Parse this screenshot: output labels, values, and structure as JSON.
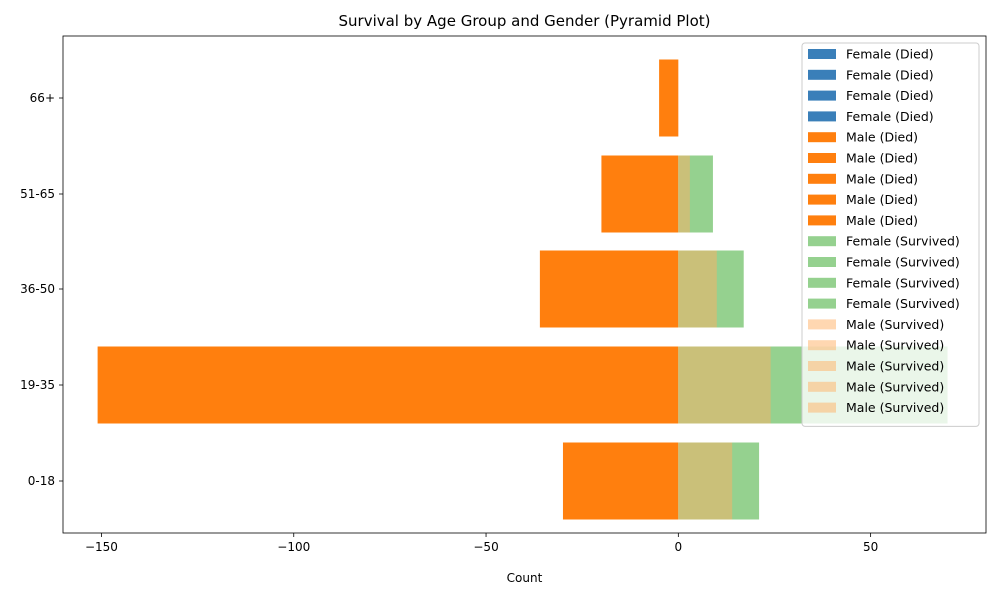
{
  "chart_data": {
    "type": "bar",
    "orientation": "horizontal",
    "title": "Survival by Age Group and Gender (Pyramid Plot)",
    "xlabel": "Count",
    "ylabel": "",
    "xlim": [
      -160,
      80
    ],
    "xticks": [
      -150,
      -100,
      -50,
      0,
      50
    ],
    "xtick_labels": [
      "−150",
      "−100",
      "−50",
      "0",
      "50"
    ],
    "categories": [
      "0-18",
      "19-35",
      "36-50",
      "51-65",
      "66+"
    ],
    "grid": false,
    "legend_position": "top-right",
    "series": [
      {
        "name": "Female (Died)",
        "color": "#3a7fb9",
        "opacity": 1,
        "values": [
          0,
          0,
          0,
          0,
          0
        ]
      },
      {
        "name": "Male (Died)",
        "color": "#ff7f0e",
        "opacity": 1,
        "values": [
          -30,
          -151,
          -36,
          -20,
          -5
        ]
      },
      {
        "name": "Female (Survived)",
        "color": "#95d18f",
        "opacity": 1,
        "values": [
          21,
          70,
          17,
          9,
          0
        ]
      },
      {
        "name": "Male (Survived)",
        "color": "#ffb063",
        "opacity": 0.5,
        "values": [
          14,
          24,
          10,
          3,
          0
        ]
      }
    ],
    "legend_entries": [
      {
        "label": "Female (Died)",
        "series": 0
      },
      {
        "label": "Female (Died)",
        "series": 0
      },
      {
        "label": "Female (Died)",
        "series": 0
      },
      {
        "label": "Female (Died)",
        "series": 0
      },
      {
        "label": "Male (Died)",
        "series": 1
      },
      {
        "label": "Male (Died)",
        "series": 1
      },
      {
        "label": "Male (Died)",
        "series": 1
      },
      {
        "label": "Male (Died)",
        "series": 1
      },
      {
        "label": "Male (Died)",
        "series": 1
      },
      {
        "label": "Female (Survived)",
        "series": 2
      },
      {
        "label": "Female (Survived)",
        "series": 2
      },
      {
        "label": "Female (Survived)",
        "series": 2
      },
      {
        "label": "Female (Survived)",
        "series": 2
      },
      {
        "label": "Male (Survived)",
        "series": 3
      },
      {
        "label": "Male (Survived)",
        "series": 3
      },
      {
        "label": "Male (Survived)",
        "series": 3
      },
      {
        "label": "Male (Survived)",
        "series": 3
      },
      {
        "label": "Male (Survived)",
        "series": 3
      }
    ]
  }
}
